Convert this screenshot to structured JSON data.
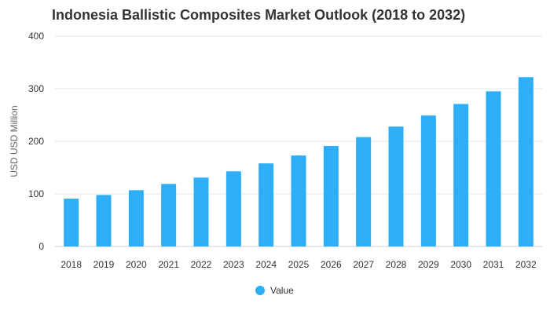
{
  "chart_data": {
    "type": "bar",
    "title": "Indonesia Ballistic Composites Market Outlook (2018 to 2032)",
    "xlabel": "",
    "ylabel": "USD USD Million",
    "categories": [
      "2018",
      "2019",
      "2020",
      "2021",
      "2022",
      "2023",
      "2024",
      "2025",
      "2026",
      "2027",
      "2028",
      "2029",
      "2030",
      "2031",
      "2032"
    ],
    "series": [
      {
        "name": "Value",
        "values": [
          91,
          98,
          107,
          119,
          131,
          143,
          158,
          173,
          191,
          208,
          228,
          249,
          271,
          295,
          322
        ],
        "color": "#2eaef5"
      }
    ],
    "ylim": [
      0,
      400
    ],
    "yticks": [
      0,
      100,
      200,
      300,
      400
    ],
    "grid": true,
    "legend": "bottom-center"
  }
}
